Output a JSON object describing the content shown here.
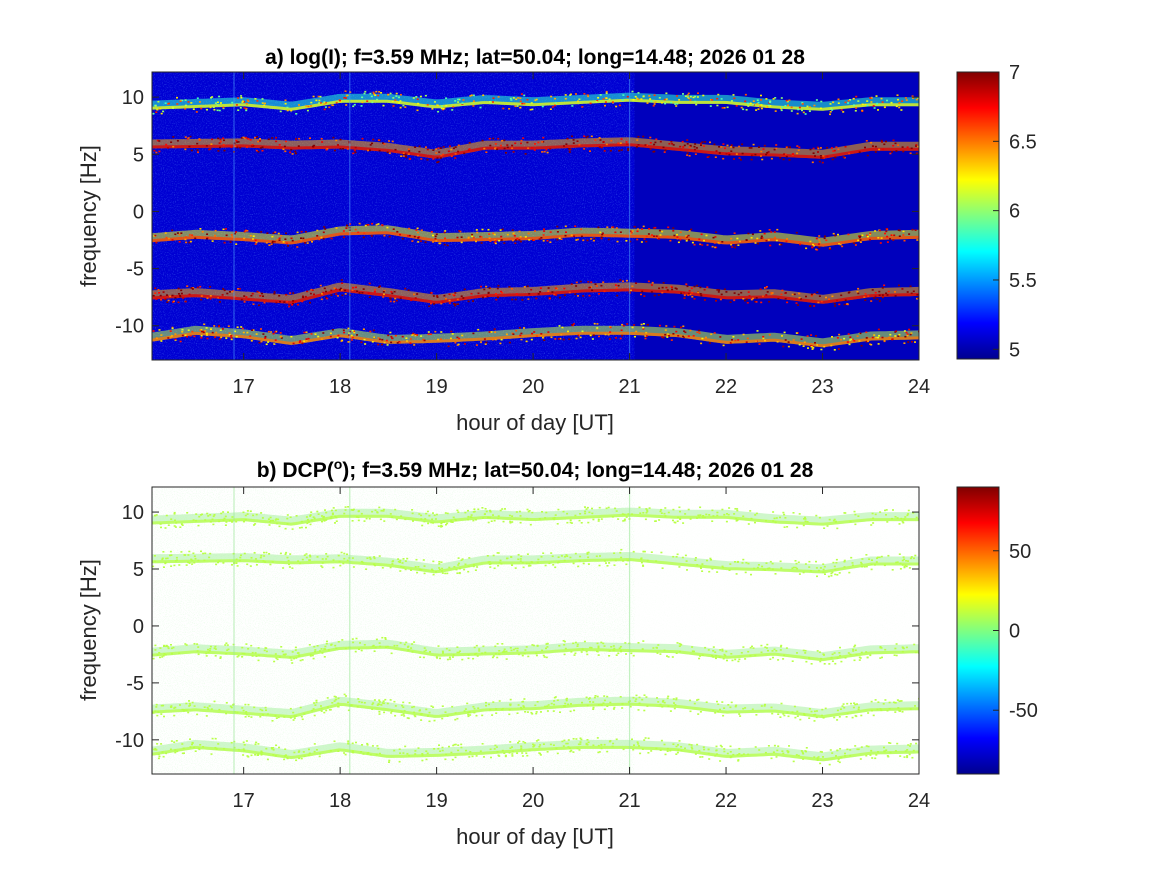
{
  "chart_data": [
    {
      "type": "heatmap",
      "title": "a) log(I); f=3.59 MHz;  lat=50.04; long=14.48; 2026 01 28",
      "xlabel": "hour of day [UT]",
      "ylabel": "frequency [Hz]",
      "xlim": [
        16.05,
        24
      ],
      "ylim": [
        -13,
        12.2
      ],
      "x_ticks": [
        17,
        18,
        19,
        20,
        21,
        22,
        23,
        24
      ],
      "y_ticks": [
        10,
        5,
        0,
        -5,
        -10
      ],
      "colorbar": {
        "clim": [
          4.93,
          7
        ],
        "ticks": [
          7,
          6.5,
          6,
          5.5,
          5
        ],
        "colormap": "jet"
      },
      "background_value": 5.1,
      "bands": [
        {
          "freq_hz": 9.5,
          "x": [
            16.05,
            17,
            17.5,
            18,
            18.5,
            19,
            19.5,
            20,
            20.5,
            21,
            21.5,
            22,
            22.5,
            23,
            23.5,
            24
          ],
          "y": [
            9.3,
            9.6,
            9.2,
            9.9,
            9.9,
            9.4,
            9.8,
            9.6,
            9.8,
            10.0,
            9.8,
            9.8,
            9.4,
            9.2,
            9.6,
            9.6
          ],
          "value": 6.1
        },
        {
          "freq_hz": 5.9,
          "x": [
            16.05,
            17,
            17.5,
            18,
            18.5,
            19,
            19.5,
            20,
            20.5,
            21,
            21.5,
            22,
            22.5,
            23,
            23.5,
            24
          ],
          "y": [
            5.9,
            6.0,
            5.8,
            5.9,
            5.6,
            5.0,
            5.8,
            5.8,
            6.0,
            6.1,
            5.7,
            5.3,
            5.2,
            5.0,
            5.7,
            5.7
          ],
          "value": 6.7
        },
        {
          "freq_hz": -2.0,
          "x": [
            16.05,
            16.5,
            17,
            17.5,
            18,
            18.5,
            19,
            19.5,
            20,
            20.5,
            21,
            21.5,
            22,
            22.5,
            23,
            23.5,
            24
          ],
          "y": [
            -2.3,
            -2.0,
            -2.2,
            -2.5,
            -1.7,
            -1.6,
            -2.3,
            -2.2,
            -2.1,
            -1.8,
            -1.9,
            -2.0,
            -2.5,
            -2.2,
            -2.7,
            -2.1,
            -2.0
          ],
          "value": 6.5
        },
        {
          "freq_hz": -7.0,
          "x": [
            16.05,
            16.5,
            17,
            17.5,
            18,
            18.5,
            19,
            19.5,
            20,
            20.5,
            21,
            21.5,
            22,
            22.5,
            23,
            23.5,
            24
          ],
          "y": [
            -7.3,
            -7.1,
            -7.4,
            -7.7,
            -6.6,
            -7.1,
            -7.7,
            -7.1,
            -7.0,
            -6.7,
            -6.6,
            -6.8,
            -7.3,
            -7.2,
            -7.7,
            -7.1,
            -7.0
          ],
          "value": 6.7
        },
        {
          "freq_hz": -10.8,
          "x": [
            16.05,
            16.5,
            17,
            17.5,
            18,
            18.5,
            19,
            19.5,
            20,
            20.5,
            21,
            21.5,
            22,
            22.5,
            23,
            23.5,
            24
          ],
          "y": [
            -11.0,
            -10.4,
            -10.7,
            -11.3,
            -10.6,
            -11.2,
            -11.1,
            -10.9,
            -10.6,
            -10.4,
            -10.4,
            -10.6,
            -11.2,
            -11.0,
            -11.5,
            -10.9,
            -10.8
          ],
          "value": 6.4
        }
      ],
      "dark_region_x": [
        21.05,
        24
      ]
    },
    {
      "type": "heatmap",
      "title": "b) DCP(°); f=3.59 MHz;  lat=50.04; long=14.48; 2026 01 28",
      "xlabel": "hour of day [UT]",
      "ylabel": "frequency [Hz]",
      "xlim": [
        16.05,
        24
      ],
      "ylim": [
        -13,
        12.2
      ],
      "x_ticks": [
        17,
        18,
        19,
        20,
        21,
        22,
        23,
        24
      ],
      "y_ticks": [
        10,
        5,
        0,
        -5,
        -10
      ],
      "colorbar": {
        "clim": [
          -90,
          90
        ],
        "ticks": [
          50,
          0,
          -50
        ],
        "colormap": "jet"
      },
      "band_value": 10,
      "note_same_bands_as_panel_a": true,
      "sparse_region_x": [
        21.05,
        24
      ]
    }
  ]
}
